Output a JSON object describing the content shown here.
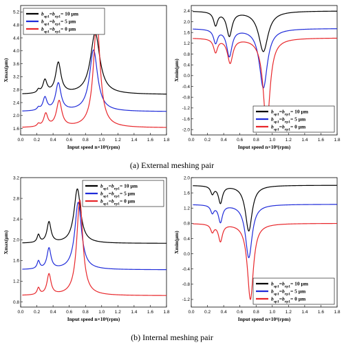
{
  "captions": {
    "a": "(a) External meshing pair",
    "b": "(b) Internal meshing pair"
  },
  "colors": {
    "black": "#000000",
    "blue": "#1f2bd9",
    "red": "#e8262a"
  },
  "legend_labels": [
    {
      "b": "b",
      "s1": "sp1",
      "eq": "=",
      "s2": "rp1",
      "val": "= 10 μm"
    },
    {
      "b": "b",
      "s1": "sp1",
      "eq": "=",
      "s2": "rp1",
      "val": "= 5 μm"
    },
    {
      "b": "b",
      "s1": "sp1",
      "eq": "=",
      "s2": "rp1",
      "val": "= 0 μm"
    }
  ],
  "chart_data": [
    {
      "id": "a-left",
      "type": "line",
      "xlabel": "Input speed  n×10⁴(rpm)",
      "ylabel": "Xmax(μm)",
      "xlim": [
        0,
        1.8
      ],
      "ylim": [
        1.4,
        5.4
      ],
      "xticks": [
        "0.0",
        "0.2",
        "0.4",
        "0.6",
        "0.8",
        "1.0",
        "1.2",
        "1.4",
        "1.6",
        "1.8"
      ],
      "yticks": [
        "1.6",
        "2.0",
        "2.4",
        "2.8",
        "3.2",
        "3.6",
        "4.0",
        "4.4",
        "4.8",
        "5.2"
      ],
      "legend": "top-left",
      "series": [
        {
          "name": "bsp1=brp1= 10 μm",
          "color": "black",
          "base": 2.65,
          "peaks": [
            [
              0.22,
              0.02,
              0.1
            ],
            [
              0.3,
              0.03,
              0.4
            ],
            [
              0.465,
              0.04,
              0.95
            ],
            [
              0.92,
              0.07,
              1.9
            ]
          ]
        },
        {
          "name": "bsp1=brp1= 5 μm",
          "color": "blue",
          "base": 2.12,
          "peaks": [
            [
              0.22,
              0.02,
              0.08
            ],
            [
              0.3,
              0.03,
              0.4
            ],
            [
              0.465,
              0.04,
              0.85
            ],
            [
              0.9,
              0.06,
              1.9
            ]
          ]
        },
        {
          "name": "bsp1=brp1= 0 μm",
          "color": "red",
          "base": 1.62,
          "peaks": [
            [
              0.22,
              0.02,
              0.08
            ],
            [
              0.31,
              0.03,
              0.4
            ],
            [
              0.475,
              0.04,
              0.8
            ],
            [
              0.94,
              0.05,
              3.3
            ]
          ]
        }
      ]
    },
    {
      "id": "a-right",
      "type": "line",
      "xlabel": "Input speed  n×10⁴(rpm)",
      "ylabel": "Xmin(μm)",
      "xlim": [
        0,
        1.8
      ],
      "ylim": [
        -2.2,
        2.6
      ],
      "xticks": [
        "0.0",
        "0.2",
        "0.4",
        "0.6",
        "0.8",
        "1.0",
        "1.2",
        "1.4",
        "1.6",
        "1.8"
      ],
      "yticks": [
        "-2.0",
        "-1.6",
        "-1.2",
        "-0.8",
        "-0.4",
        "0.0",
        "0.4",
        "0.8",
        "1.2",
        "1.6",
        "2.0",
        "2.4"
      ],
      "legend": "bottom-right",
      "series": [
        {
          "name": "bsp1=brp1= 10 μm",
          "color": "black",
          "base": 2.4,
          "peaks": [
            [
              0.3,
              0.03,
              -0.5
            ],
            [
              0.47,
              0.04,
              -0.9
            ],
            [
              0.89,
              0.07,
              -1.5
            ]
          ]
        },
        {
          "name": "bsp1=brp1= 5 μm",
          "color": "blue",
          "base": 1.75,
          "peaks": [
            [
              0.3,
              0.03,
              -0.5
            ],
            [
              0.47,
              0.04,
              -1.0
            ],
            [
              0.89,
              0.06,
              -2.2
            ]
          ]
        },
        {
          "name": "bsp1=brp1= 0 μm",
          "color": "red",
          "base": 1.4,
          "peaks": [
            [
              0.3,
              0.03,
              -0.5
            ],
            [
              0.48,
              0.04,
              -0.9
            ],
            [
              0.93,
              0.05,
              -3.3
            ]
          ]
        }
      ]
    },
    {
      "id": "b-left",
      "type": "line",
      "xlabel": "Input speed  n×10⁴(rpm)",
      "ylabel": "Xmax(μm)",
      "xlim": [
        0,
        1.8
      ],
      "ylim": [
        0.7,
        3.2
      ],
      "xticks": [
        "0.0",
        "0.2",
        "0.4",
        "0.6",
        "0.8",
        "1.0",
        "1.2",
        "1.4",
        "1.6",
        "1.8"
      ],
      "yticks": [
        "0.8",
        "1.2",
        "1.6",
        "2.0",
        "2.4",
        "2.8",
        "3.2"
      ],
      "legend": "top-right",
      "series": [
        {
          "name": "bsp1=brp1= 10 μm",
          "color": "black",
          "base": 1.93,
          "peaks": [
            [
              0.22,
              0.02,
              0.15
            ],
            [
              0.35,
              0.03,
              0.4
            ],
            [
              0.7,
              0.05,
              1.05
            ]
          ]
        },
        {
          "name": "bsp1=brp1= 5 μm",
          "color": "blue",
          "base": 1.42,
          "peaks": [
            [
              0.22,
              0.02,
              0.15
            ],
            [
              0.35,
              0.03,
              0.4
            ],
            [
              0.71,
              0.05,
              1.3
            ]
          ]
        },
        {
          "name": "bsp1=brp1= 0 μm",
          "color": "red",
          "base": 0.92,
          "peaks": [
            [
              0.22,
              0.02,
              0.13
            ],
            [
              0.35,
              0.03,
              0.4
            ],
            [
              0.73,
              0.045,
              1.85
            ]
          ]
        }
      ]
    },
    {
      "id": "b-right",
      "type": "line",
      "xlabel": "Input speed  n×10⁴(rpm)",
      "ylabel": "Xmin(μm)",
      "xlim": [
        0,
        1.8
      ],
      "ylim": [
        -1.4,
        2.0
      ],
      "xticks": [
        "0.0",
        "0.2",
        "0.4",
        "0.6",
        "0.8",
        "1.0",
        "1.2",
        "1.4",
        "1.6",
        "1.8"
      ],
      "yticks": [
        "-1.2",
        "-0.8",
        "-0.4",
        "0.0",
        "0.4",
        "0.8",
        "1.2",
        "1.6",
        "2.0"
      ],
      "legend": "bottom-right",
      "series": [
        {
          "name": "bsp1=brp1= 10 μm",
          "color": "black",
          "base": 1.8,
          "peaks": [
            [
              0.26,
              0.025,
              -0.2
            ],
            [
              0.36,
              0.03,
              -0.45
            ],
            [
              0.71,
              0.05,
              -1.2
            ]
          ]
        },
        {
          "name": "bsp1=brp1= 5 μm",
          "color": "blue",
          "base": 1.3,
          "peaks": [
            [
              0.26,
              0.025,
              -0.2
            ],
            [
              0.36,
              0.03,
              -0.45
            ],
            [
              0.71,
              0.05,
              -1.4
            ]
          ]
        },
        {
          "name": "bsp1=brp1= 0 μm",
          "color": "red",
          "base": 0.8,
          "peaks": [
            [
              0.26,
              0.025,
              -0.2
            ],
            [
              0.36,
              0.03,
              -0.45
            ],
            [
              0.73,
              0.045,
              -2.0
            ]
          ]
        }
      ]
    }
  ]
}
